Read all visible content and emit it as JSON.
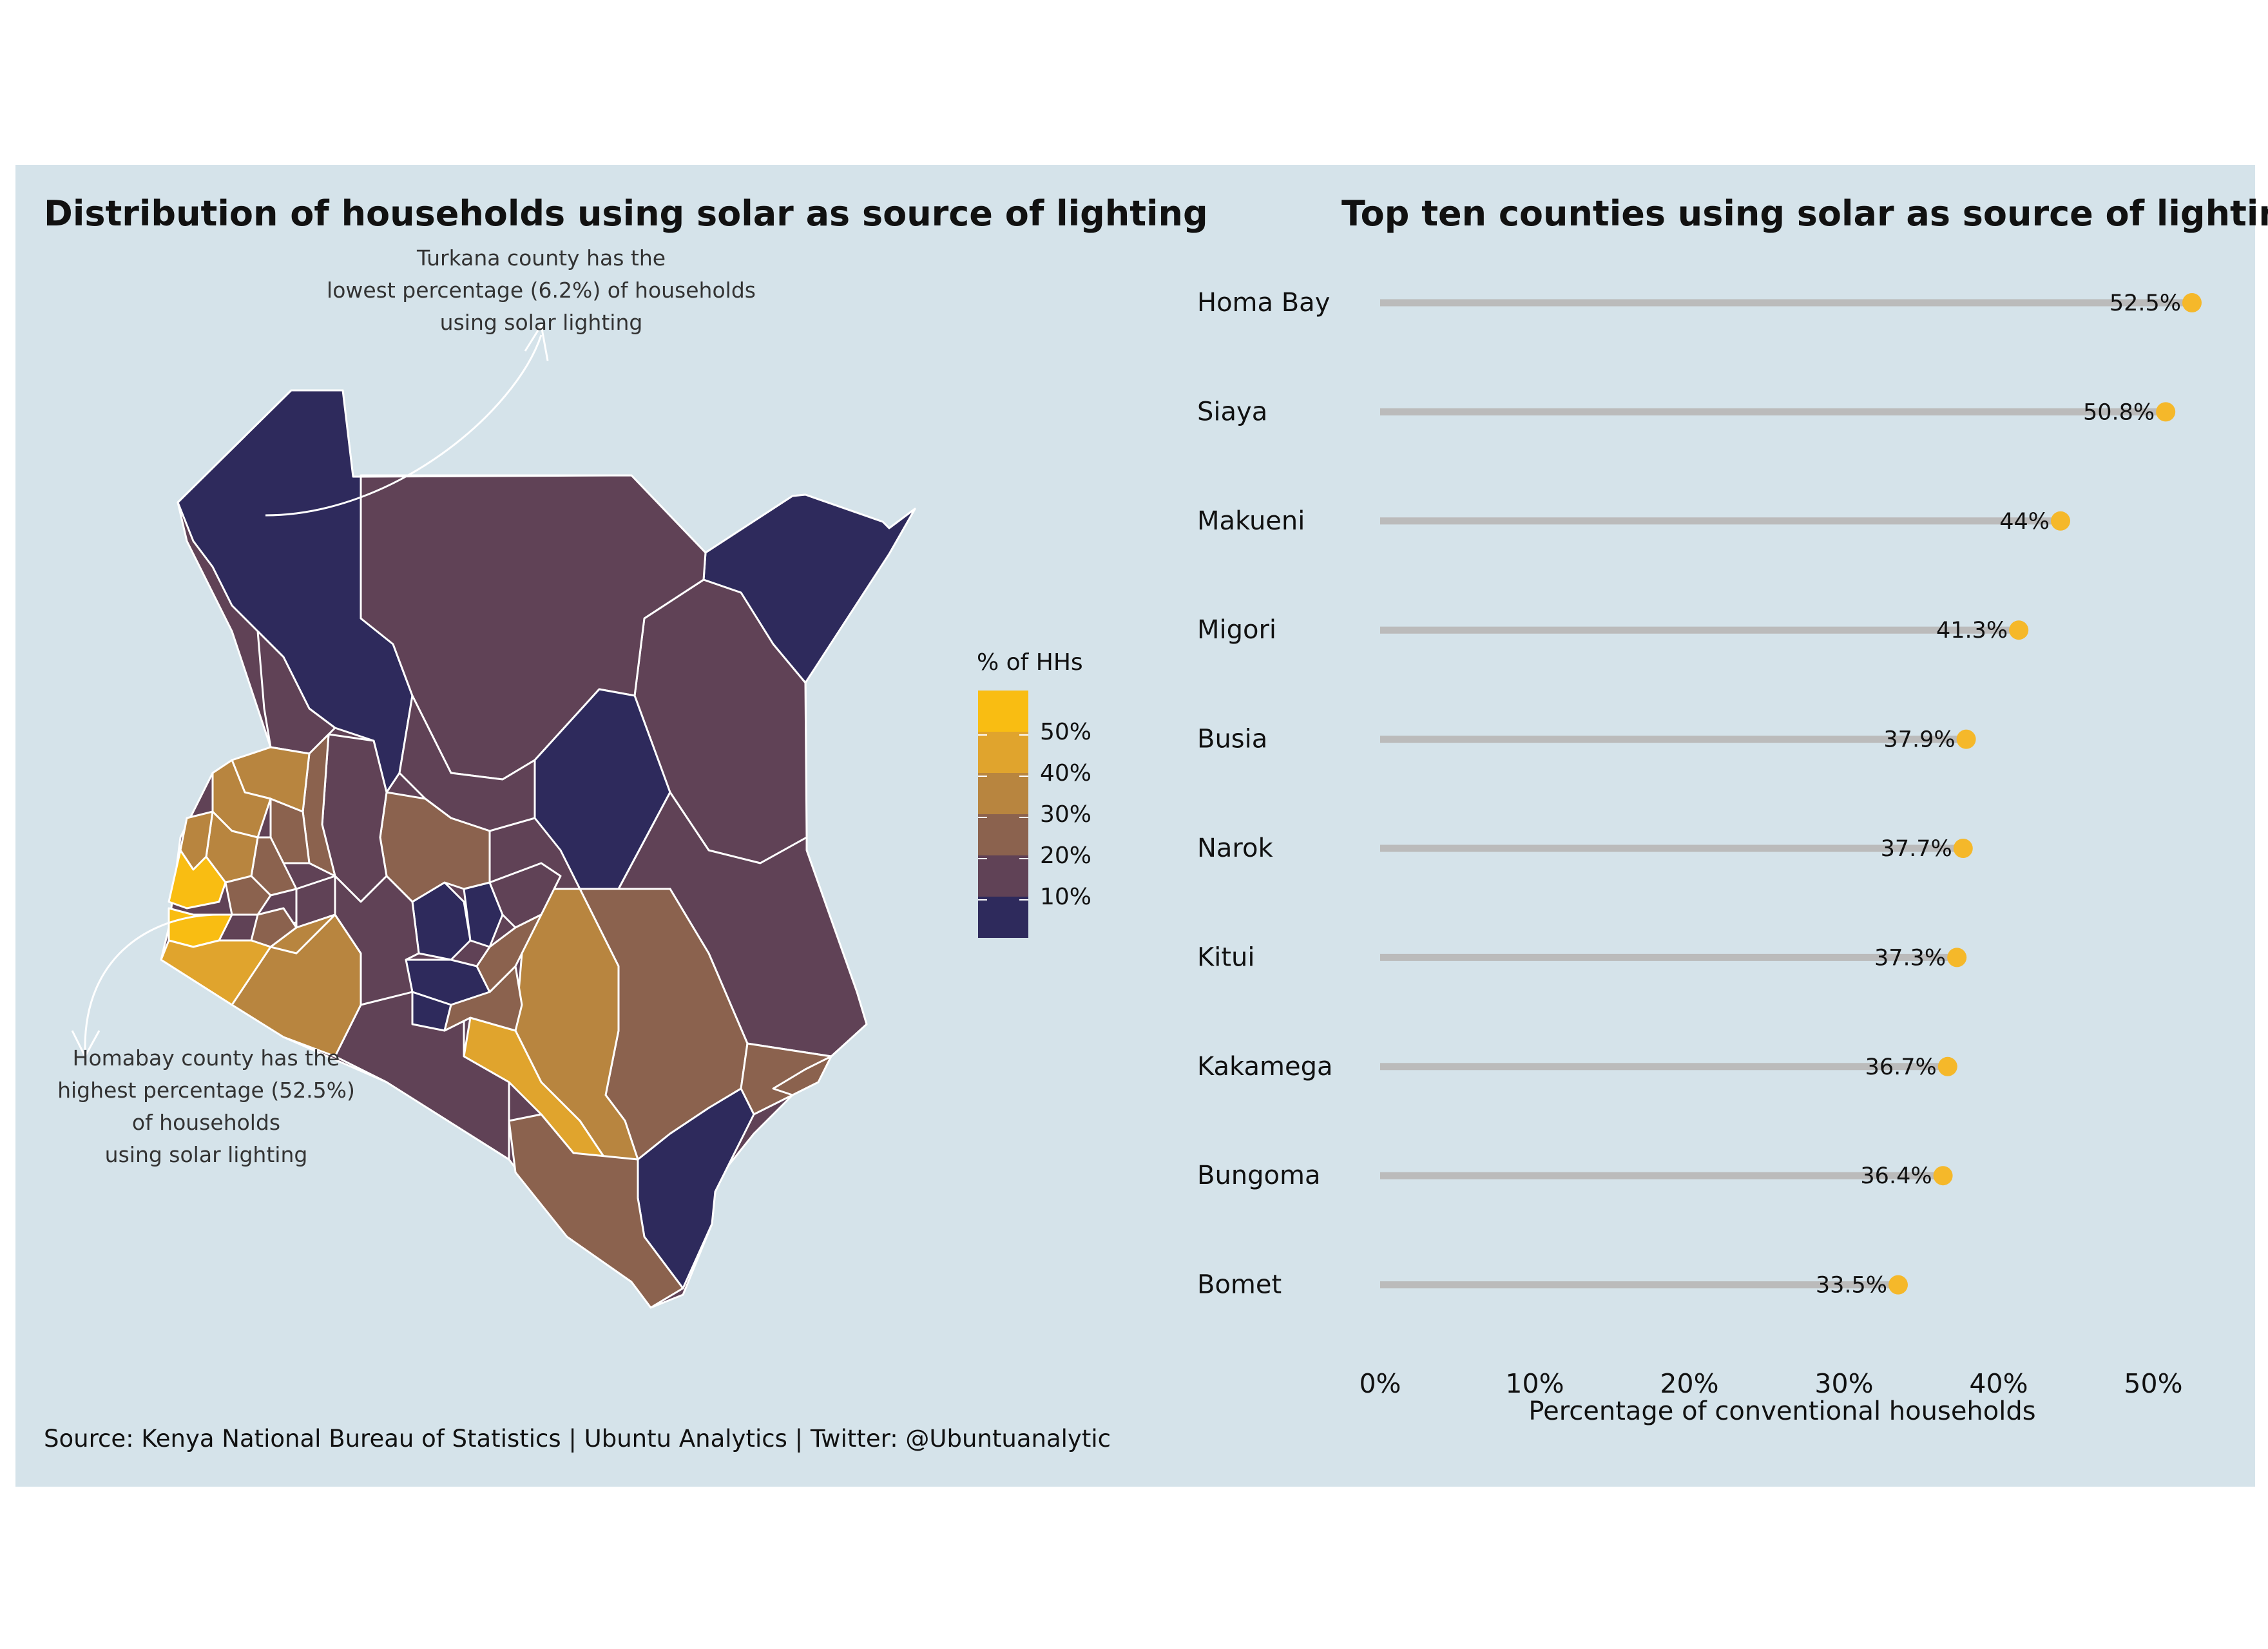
{
  "map": {
    "title": "Distribution of households using solar as source of lighting",
    "annotation_top": [
      "Turkana county has the",
      "lowest percentage (6.2%) of households",
      "using solar lighting"
    ],
    "annotation_bottom": [
      "Homabay county has the",
      "highest percentage (52.5%)",
      "of households",
      "using solar lighting"
    ],
    "legend_title": "% of HHs",
    "legend_labels": [
      "50%",
      "40%",
      "30%",
      "20%",
      "10%"
    ],
    "palette": [
      "#f9bd12",
      "#e0a42d",
      "#b8853f",
      "#8b624e",
      "#604256",
      "#2e2a5c"
    ]
  },
  "chart_data": {
    "type": "lollipop",
    "title": "Top ten counties using solar as source of lighting",
    "categories": [
      "Homa Bay",
      "Siaya",
      "Makueni",
      "Migori",
      "Busia",
      "Narok",
      "Kitui",
      "Kakamega",
      "Bungoma",
      "Bomet"
    ],
    "values": [
      52.5,
      50.8,
      44,
      41.3,
      37.9,
      37.7,
      37.3,
      36.7,
      36.4,
      33.5
    ],
    "value_labels": [
      "52.5%",
      "50.8%",
      "44%",
      "41.3%",
      "37.9%",
      "37.7%",
      "37.3%",
      "36.7%",
      "36.4%",
      "33.5%"
    ],
    "x_ticks": [
      "0%",
      "10%",
      "20%",
      "30%",
      "40%",
      "50%"
    ],
    "xlabel": "Percentage of conventional households",
    "xlim": [
      0,
      55
    ],
    "stem_color": "#bbbbbb",
    "dot_color": "#f5b82a"
  },
  "caption": "Source: Kenya National Bureau of Statistics | Ubuntu Analytics | Twitter: @Ubuntuanalytic"
}
